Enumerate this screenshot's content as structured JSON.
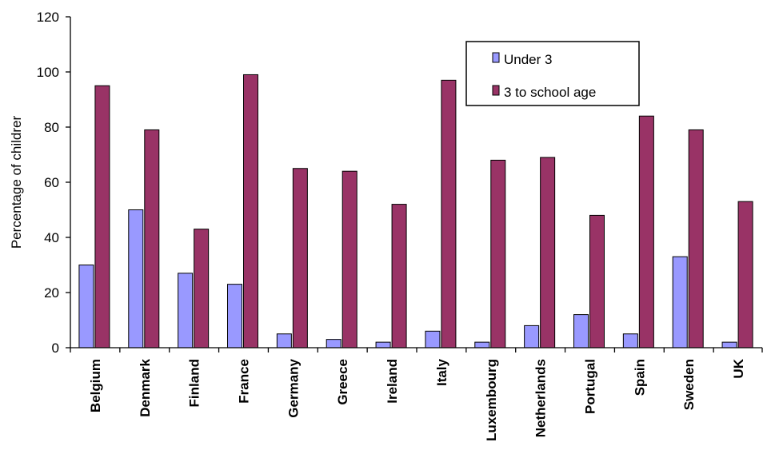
{
  "chart_data": {
    "type": "bar",
    "title": "",
    "xlabel": "",
    "ylabel": "Percentage of childrer",
    "ylim": [
      0,
      120
    ],
    "yticks": [
      0,
      20,
      40,
      60,
      80,
      100,
      120
    ],
    "grid": false,
    "legend_position": "top-right",
    "categories": [
      "Belgium",
      "Denmark",
      "Finland",
      "France",
      "Germany",
      "Greece",
      "Ireland",
      "Italy",
      "Luxembourg",
      "Netherlands",
      "Portugal",
      "Spain",
      "Sweden",
      "UK"
    ],
    "series": [
      {
        "name": "Under 3",
        "color": "#9999FF",
        "values": [
          30,
          50,
          27,
          23,
          5,
          3,
          2,
          6,
          2,
          8,
          12,
          5,
          33,
          2
        ]
      },
      {
        "name": "3 to school age",
        "color": "#993366",
        "values": [
          95,
          79,
          43,
          99,
          65,
          64,
          52,
          97,
          68,
          69,
          48,
          84,
          79,
          53
        ]
      }
    ]
  }
}
